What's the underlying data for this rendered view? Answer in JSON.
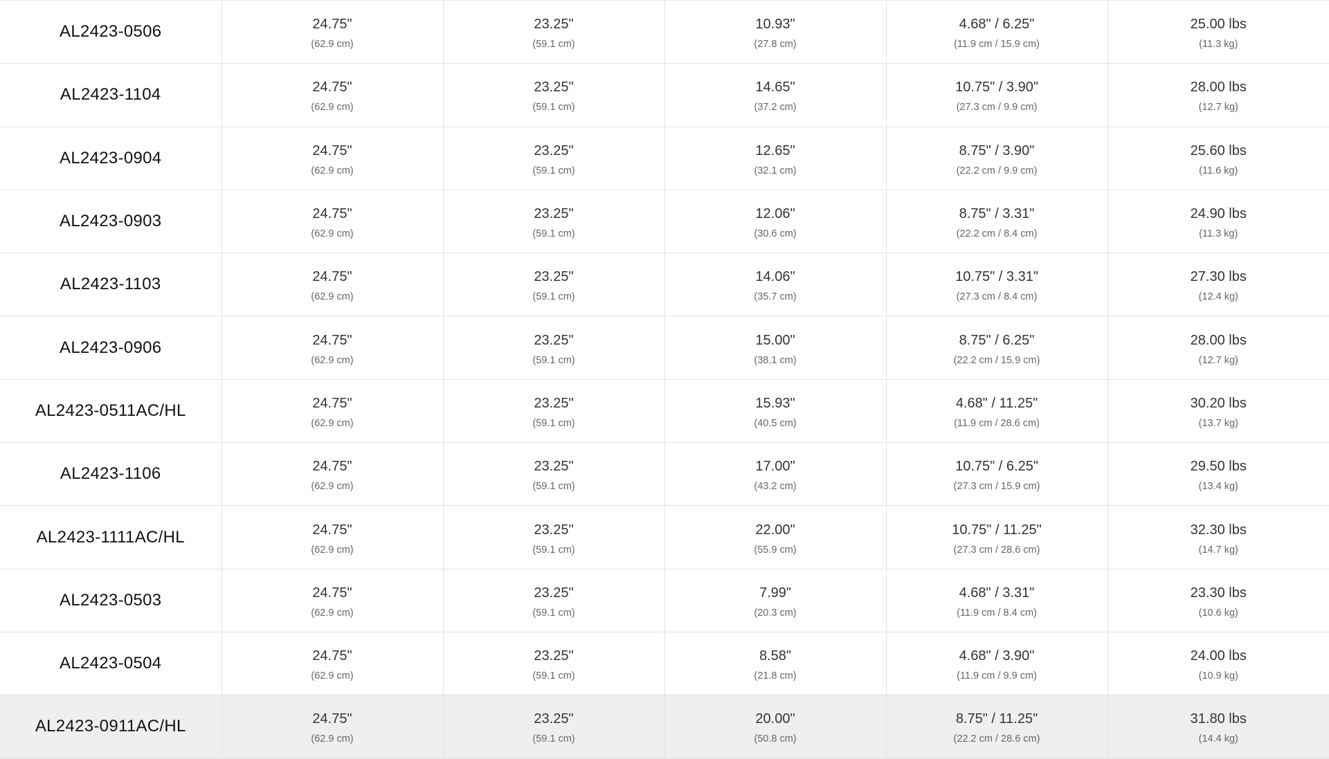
{
  "highlight_color": "#efefef",
  "rows": [
    {
      "model": "AL2423-0506",
      "cells": [
        [
          "24.75\"",
          "(62.9 cm)"
        ],
        [
          "23.25\"",
          "(59.1 cm)"
        ],
        [
          "10.93\"",
          "(27.8 cm)"
        ],
        [
          "4.68\" / 6.25\"",
          "(11.9 cm / 15.9 cm)"
        ],
        [
          "25.00 lbs",
          "(11.3 kg)"
        ]
      ]
    },
    {
      "model": "AL2423-1104",
      "cells": [
        [
          "24.75\"",
          "(62.9 cm)"
        ],
        [
          "23.25\"",
          "(59.1 cm)"
        ],
        [
          "14.65\"",
          "(37.2 cm)"
        ],
        [
          "10.75\" / 3.90\"",
          "(27.3 cm / 9.9 cm)"
        ],
        [
          "28.00 lbs",
          "(12.7 kg)"
        ]
      ]
    },
    {
      "model": "AL2423-0904",
      "cells": [
        [
          "24.75\"",
          "(62.9 cm)"
        ],
        [
          "23.25\"",
          "(59.1 cm)"
        ],
        [
          "12.65\"",
          "(32.1 cm)"
        ],
        [
          "8.75\" / 3.90\"",
          "(22.2 cm / 9.9 cm)"
        ],
        [
          "25.60 lbs",
          "(11.6 kg)"
        ]
      ]
    },
    {
      "model": "AL2423-0903",
      "cells": [
        [
          "24.75\"",
          "(62.9 cm)"
        ],
        [
          "23.25\"",
          "(59.1 cm)"
        ],
        [
          "12.06\"",
          "(30.6 cm)"
        ],
        [
          "8.75\" / 3.31\"",
          "(22.2 cm / 8.4 cm)"
        ],
        [
          "24.90 lbs",
          "(11.3 kg)"
        ]
      ]
    },
    {
      "model": "AL2423-1103",
      "cells": [
        [
          "24.75\"",
          "(62.9 cm)"
        ],
        [
          "23.25\"",
          "(59.1 cm)"
        ],
        [
          "14.06\"",
          "(35.7 cm)"
        ],
        [
          "10.75\" / 3.31\"",
          "(27.3 cm / 8.4 cm)"
        ],
        [
          "27.30 lbs",
          "(12.4 kg)"
        ]
      ]
    },
    {
      "model": "AL2423-0906",
      "cells": [
        [
          "24.75\"",
          "(62.9 cm)"
        ],
        [
          "23.25\"",
          "(59.1 cm)"
        ],
        [
          "15.00\"",
          "(38.1 cm)"
        ],
        [
          "8.75\" / 6.25\"",
          "(22.2 cm / 15.9 cm)"
        ],
        [
          "28.00 lbs",
          "(12.7 kg)"
        ]
      ]
    },
    {
      "model": "AL2423-0511AC/HL",
      "cells": [
        [
          "24.75\"",
          "(62.9 cm)"
        ],
        [
          "23.25\"",
          "(59.1 cm)"
        ],
        [
          "15.93\"",
          "(40.5 cm)"
        ],
        [
          "4.68\" / 11.25\"",
          "(11.9 cm / 28.6 cm)"
        ],
        [
          "30.20 lbs",
          "(13.7 kg)"
        ]
      ]
    },
    {
      "model": "AL2423-1106",
      "cells": [
        [
          "24.75\"",
          "(62.9 cm)"
        ],
        [
          "23.25\"",
          "(59.1 cm)"
        ],
        [
          "17.00\"",
          "(43.2 cm)"
        ],
        [
          "10.75\" / 6.25\"",
          "(27.3 cm / 15.9 cm)"
        ],
        [
          "29.50 lbs",
          "(13.4 kg)"
        ]
      ]
    },
    {
      "model": "AL2423-1111AC/HL",
      "cells": [
        [
          "24.75\"",
          "(62.9 cm)"
        ],
        [
          "23.25\"",
          "(59.1 cm)"
        ],
        [
          "22.00\"",
          "(55.9 cm)"
        ],
        [
          "10.75\" / 11.25\"",
          "(27.3 cm / 28.6 cm)"
        ],
        [
          "32.30 lbs",
          "(14.7 kg)"
        ]
      ]
    },
    {
      "model": "AL2423-0503",
      "cells": [
        [
          "24.75\"",
          "(62.9 cm)"
        ],
        [
          "23.25\"",
          "(59.1 cm)"
        ],
        [
          "7.99\"",
          "(20.3 cm)"
        ],
        [
          "4.68\" / 3.31\"",
          "(11.9 cm / 8.4 cm)"
        ],
        [
          "23.30 lbs",
          "(10.6 kg)"
        ]
      ]
    },
    {
      "model": "AL2423-0504",
      "cells": [
        [
          "24.75\"",
          "(62.9 cm)"
        ],
        [
          "23.25\"",
          "(59.1 cm)"
        ],
        [
          "8.58\"",
          "(21.8 cm)"
        ],
        [
          "4.68\" / 3.90\"",
          "(11.9 cm / 9.9 cm)"
        ],
        [
          "24.00 lbs",
          "(10.9 kg)"
        ]
      ]
    },
    {
      "model": "AL2423-0911AC/HL",
      "highlighted": true,
      "cells": [
        [
          "24.75\"",
          "(62.9 cm)"
        ],
        [
          "23.25\"",
          "(59.1 cm)"
        ],
        [
          "20.00\"",
          "(50.8 cm)"
        ],
        [
          "8.75\" / 11.25\"",
          "(22.2 cm / 28.6 cm)"
        ],
        [
          "31.80 lbs",
          "(14.4 kg)"
        ]
      ]
    }
  ]
}
